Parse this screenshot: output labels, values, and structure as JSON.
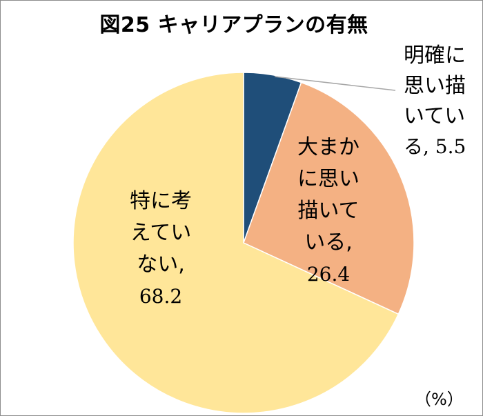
{
  "chart_data": {
    "type": "pie",
    "title": "図25 キャリアプランの有無",
    "unit": "（%）",
    "start_angle_deg": 0,
    "direction": "clockwise",
    "slices": [
      {
        "label": "明確に思い描いている",
        "value": 5.5,
        "color": "#1f4e79",
        "label_lines": [
          "明確に",
          "思い描",
          "いてい",
          "る, 5.5"
        ]
      },
      {
        "label": "大まかに思い描いている",
        "value": 26.4,
        "color": "#f4b183",
        "label_lines": [
          "大まか",
          "に思い",
          "描いて",
          "いる,",
          "26.4"
        ]
      },
      {
        "label": "特に考えていない",
        "value": 68.2,
        "color": "#ffe699",
        "label_lines": [
          "特に考",
          "えてい",
          "ない,",
          "68.2"
        ]
      }
    ]
  }
}
